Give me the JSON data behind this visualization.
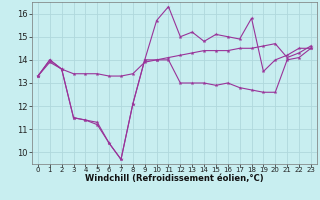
{
  "xlabel": "Windchill (Refroidissement éolien,°C)",
  "background_color": "#c8eef0",
  "grid_color": "#b0d8dc",
  "line_color": "#993399",
  "x": [
    0,
    1,
    2,
    3,
    4,
    5,
    6,
    7,
    8,
    9,
    10,
    11,
    12,
    13,
    14,
    15,
    16,
    17,
    18,
    19,
    20,
    21,
    22,
    23
  ],
  "line1": [
    13.3,
    13.9,
    13.6,
    11.5,
    11.4,
    11.2,
    10.4,
    9.7,
    12.1,
    14.0,
    14.0,
    14.0,
    13.0,
    13.0,
    13.0,
    12.9,
    13.0,
    12.8,
    12.7,
    12.6,
    12.6,
    14.0,
    14.1,
    14.5
  ],
  "line2": [
    13.3,
    14.0,
    13.6,
    11.5,
    11.4,
    11.3,
    10.4,
    9.7,
    12.1,
    14.0,
    15.7,
    16.3,
    15.0,
    15.2,
    14.8,
    15.1,
    15.0,
    14.9,
    15.8,
    13.5,
    14.0,
    14.2,
    14.5,
    14.5
  ],
  "line3": [
    13.3,
    14.0,
    13.6,
    13.4,
    13.4,
    13.4,
    13.3,
    13.3,
    13.4,
    13.9,
    14.0,
    14.1,
    14.2,
    14.3,
    14.4,
    14.4,
    14.4,
    14.5,
    14.5,
    14.6,
    14.7,
    14.1,
    14.3,
    14.6
  ],
  "ylim": [
    9.5,
    16.5
  ],
  "xlim": [
    -0.5,
    23.5
  ],
  "yticks": [
    10,
    11,
    12,
    13,
    14,
    15,
    16
  ],
  "xticks": [
    0,
    1,
    2,
    3,
    4,
    5,
    6,
    7,
    8,
    9,
    10,
    11,
    12,
    13,
    14,
    15,
    16,
    17,
    18,
    19,
    20,
    21,
    22,
    23
  ],
  "xlabel_fontsize": 6,
  "ytick_fontsize": 6,
  "xtick_fontsize": 5
}
